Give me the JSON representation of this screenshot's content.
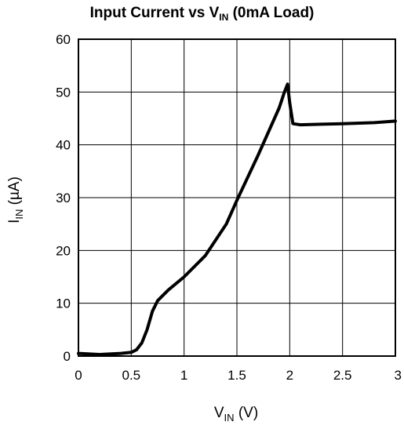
{
  "chart_data": {
    "type": "line",
    "title": {
      "main": "Input Current vs V",
      "sub": "IN",
      "tail": " (0mA Load)"
    },
    "xlabel": {
      "main": "V",
      "sub": "IN",
      "tail": "  (V)"
    },
    "ylabel": {
      "main": "I",
      "sub": "IN",
      "tail": "  (µA)"
    },
    "xlim": [
      0,
      3
    ],
    "ylim": [
      0,
      60
    ],
    "x_ticks": [
      0,
      0.5,
      1,
      1.5,
      2,
      2.5,
      3
    ],
    "x_tick_labels": [
      "0",
      "0.5",
      "1",
      "1.5",
      "2",
      "2.5",
      "3"
    ],
    "y_ticks": [
      0,
      10,
      20,
      30,
      40,
      50,
      60
    ],
    "y_tick_labels": [
      "0",
      "10",
      "20",
      "30",
      "40",
      "50",
      "60"
    ],
    "grid": true,
    "line_color": "#000000",
    "series": [
      {
        "x": [
          0,
          0.2,
          0.4,
          0.5,
          0.55,
          0.6,
          0.65,
          0.7,
          0.75,
          0.85,
          1.0,
          1.2,
          1.4,
          1.5,
          1.7,
          1.9,
          1.95,
          1.98,
          2.0,
          2.03,
          2.1,
          2.3,
          2.5,
          2.8,
          3.0
        ],
        "y": [
          0.5,
          0.3,
          0.5,
          0.7,
          1.2,
          2.5,
          5,
          8.5,
          10.5,
          12.5,
          15,
          19,
          25,
          29.5,
          38,
          47,
          50,
          51.5,
          48,
          44,
          43.8,
          43.9,
          44.0,
          44.2,
          44.5
        ]
      }
    ]
  }
}
